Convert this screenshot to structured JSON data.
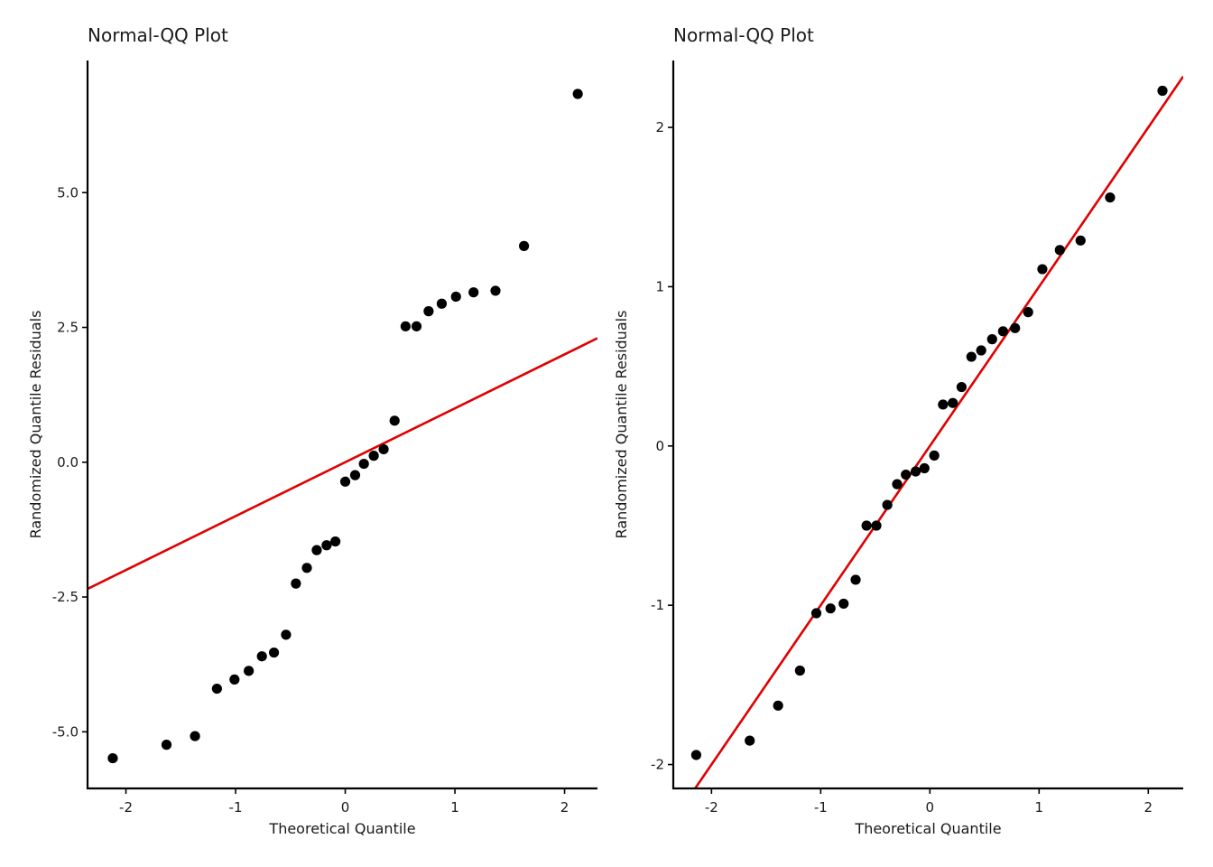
{
  "chart_data": [
    {
      "type": "scatter",
      "title": "Normal-QQ Plot",
      "xlabel": "Theoretical Quantile",
      "ylabel": "Randomized Quantile Residuals",
      "xlim": [
        -2.35,
        2.3
      ],
      "ylim": [
        -6.05,
        7.45
      ],
      "x_ticks": [
        -2,
        -1,
        0,
        1,
        2
      ],
      "x_tick_labels": [
        "-2",
        "-1",
        "0",
        "1",
        "2"
      ],
      "y_ticks": [
        -5,
        -2.5,
        0,
        2.5,
        5
      ],
      "y_tick_labels": [
        "-5.0",
        "-2.5",
        "0.0",
        "2.5",
        "5.0"
      ],
      "grid": false,
      "points": [
        {
          "x": -2.12,
          "y": -5.49
        },
        {
          "x": -1.63,
          "y": -5.24
        },
        {
          "x": -1.37,
          "y": -5.08
        },
        {
          "x": -1.17,
          "y": -4.2
        },
        {
          "x": -1.01,
          "y": -4.03
        },
        {
          "x": -0.88,
          "y": -3.87
        },
        {
          "x": -0.76,
          "y": -3.6
        },
        {
          "x": -0.65,
          "y": -3.53
        },
        {
          "x": -0.54,
          "y": -3.2
        },
        {
          "x": -0.45,
          "y": -2.25
        },
        {
          "x": -0.35,
          "y": -1.96
        },
        {
          "x": -0.26,
          "y": -1.63
        },
        {
          "x": -0.17,
          "y": -1.54
        },
        {
          "x": -0.09,
          "y": -1.47
        },
        {
          "x": 0.0,
          "y": -0.36
        },
        {
          "x": 0.09,
          "y": -0.24
        },
        {
          "x": 0.17,
          "y": -0.03
        },
        {
          "x": 0.26,
          "y": 0.12
        },
        {
          "x": 0.35,
          "y": 0.24
        },
        {
          "x": 0.45,
          "y": 0.77
        },
        {
          "x": 0.55,
          "y": 2.52
        },
        {
          "x": 0.65,
          "y": 2.52
        },
        {
          "x": 0.76,
          "y": 2.8
        },
        {
          "x": 0.88,
          "y": 2.94
        },
        {
          "x": 1.01,
          "y": 3.07
        },
        {
          "x": 1.17,
          "y": 3.15
        },
        {
          "x": 1.37,
          "y": 3.18
        },
        {
          "x": 1.63,
          "y": 4.01
        },
        {
          "x": 2.12,
          "y": 6.83
        }
      ],
      "reference_line": {
        "intercept": 0.0,
        "slope": 1.0,
        "color": "#e00000"
      }
    },
    {
      "type": "scatter",
      "title": "Normal-QQ Plot",
      "xlabel": "Theoretical Quantile",
      "ylabel": "Randomized Quantile Residuals",
      "xlim": [
        -2.35,
        2.32
      ],
      "ylim": [
        -2.15,
        2.42
      ],
      "x_ticks": [
        -2,
        -1,
        0,
        1,
        2
      ],
      "x_tick_labels": [
        "-2",
        "-1",
        "0",
        "1",
        "2"
      ],
      "y_ticks": [
        -2,
        -1,
        0,
        1,
        2
      ],
      "y_tick_labels": [
        "-2",
        "-1",
        "0",
        "1",
        "2"
      ],
      "grid": false,
      "points": [
        {
          "x": -2.14,
          "y": -1.94
        },
        {
          "x": -1.65,
          "y": -1.85
        },
        {
          "x": -1.39,
          "y": -1.63
        },
        {
          "x": -1.19,
          "y": -1.41
        },
        {
          "x": -1.04,
          "y": -1.05
        },
        {
          "x": -0.91,
          "y": -1.02
        },
        {
          "x": -0.79,
          "y": -0.99
        },
        {
          "x": -0.68,
          "y": -0.84
        },
        {
          "x": -0.58,
          "y": -0.5
        },
        {
          "x": -0.49,
          "y": -0.5
        },
        {
          "x": -0.39,
          "y": -0.37
        },
        {
          "x": -0.3,
          "y": -0.24
        },
        {
          "x": -0.22,
          "y": -0.18
        },
        {
          "x": -0.13,
          "y": -0.16
        },
        {
          "x": -0.05,
          "y": -0.14
        },
        {
          "x": 0.04,
          "y": -0.06
        },
        {
          "x": 0.12,
          "y": 0.26
        },
        {
          "x": 0.21,
          "y": 0.27
        },
        {
          "x": 0.29,
          "y": 0.37
        },
        {
          "x": 0.38,
          "y": 0.56
        },
        {
          "x": 0.47,
          "y": 0.6
        },
        {
          "x": 0.57,
          "y": 0.67
        },
        {
          "x": 0.67,
          "y": 0.72
        },
        {
          "x": 0.78,
          "y": 0.74
        },
        {
          "x": 0.9,
          "y": 0.84
        },
        {
          "x": 1.03,
          "y": 1.11
        },
        {
          "x": 1.19,
          "y": 1.23
        },
        {
          "x": 1.38,
          "y": 1.29
        },
        {
          "x": 1.65,
          "y": 1.56
        },
        {
          "x": 2.13,
          "y": 2.23
        }
      ],
      "reference_line": {
        "intercept": 0.0,
        "slope": 1.0,
        "color": "#e00000"
      }
    }
  ]
}
